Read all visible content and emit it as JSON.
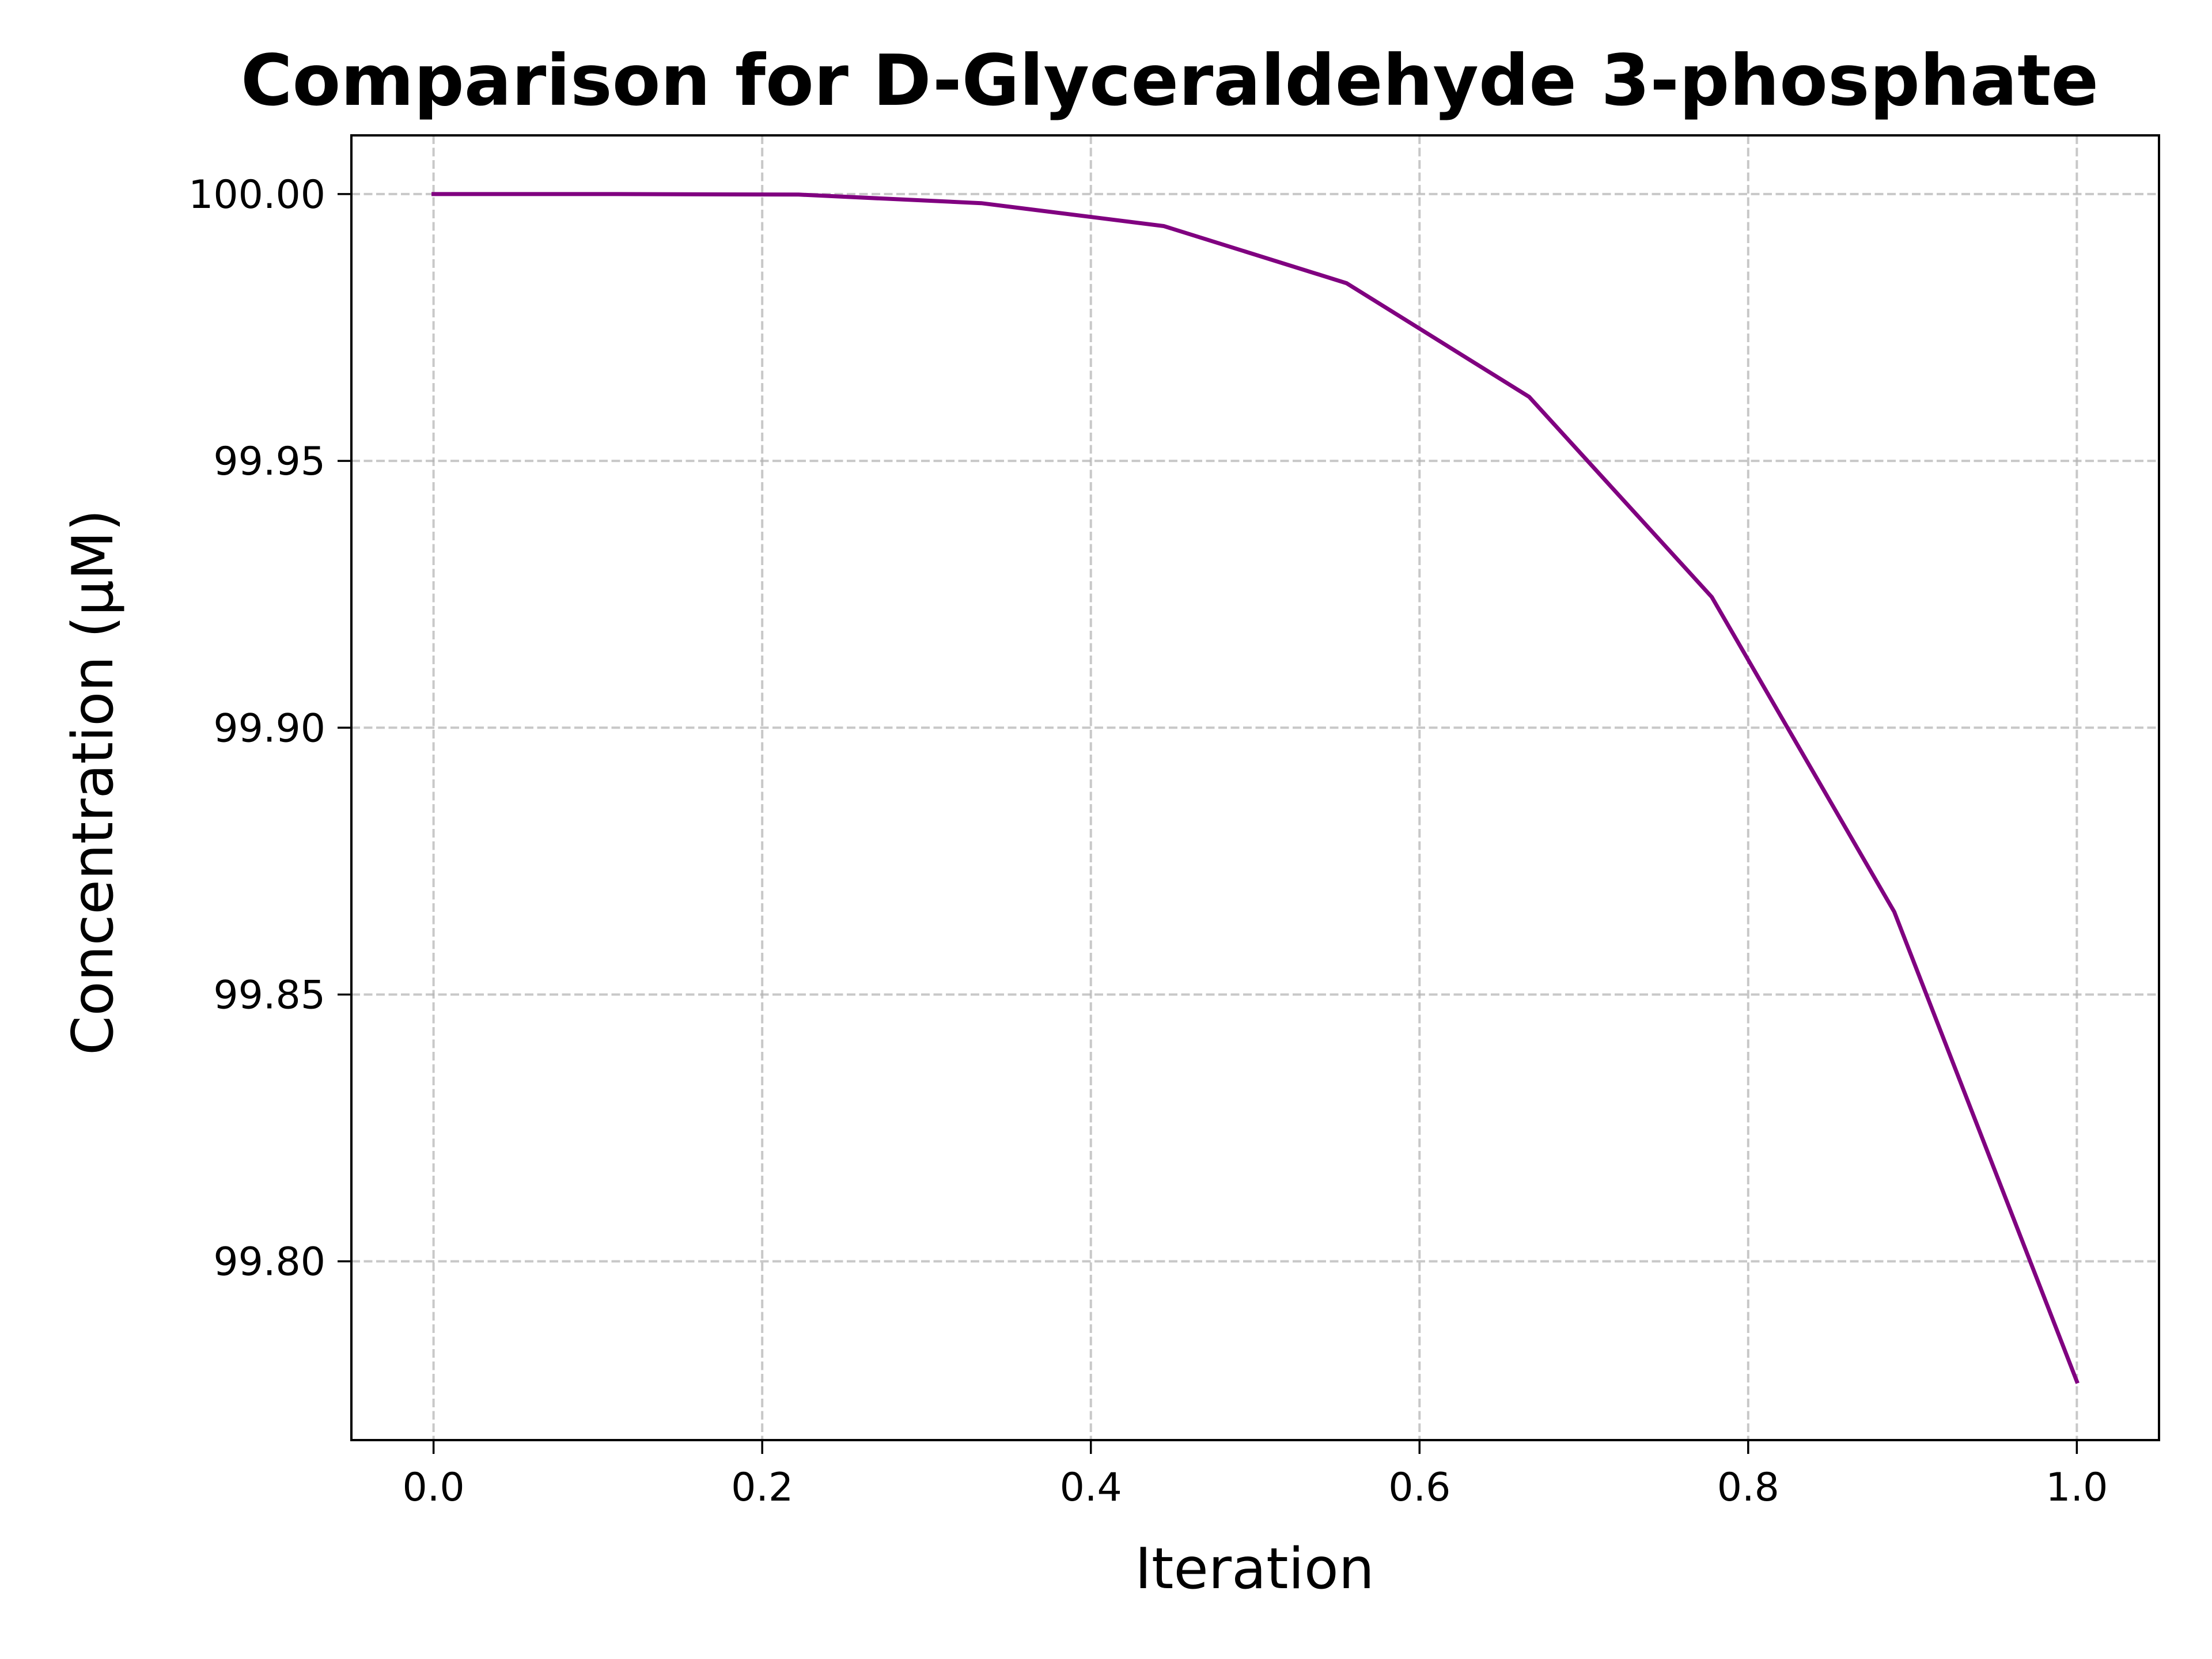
{
  "chart_data": {
    "type": "line",
    "title": "Comparison for D-Glyceraldehyde 3-phosphate",
    "xlabel": "Iteration",
    "ylabel": "Concentration (μM)",
    "xlim": [
      -0.05,
      1.05
    ],
    "ylim": [
      99.7665,
      100.011
    ],
    "x_ticks": [
      "0.0",
      "0.2",
      "0.4",
      "0.6",
      "0.8",
      "1.0"
    ],
    "x_tick_values": [
      0.0,
      0.2,
      0.4,
      0.6,
      0.8,
      1.0
    ],
    "y_ticks": [
      "99.80",
      "99.85",
      "99.90",
      "99.95",
      "100.00"
    ],
    "y_tick_values": [
      99.8,
      99.85,
      99.9,
      99.95,
      100.0
    ],
    "grid": true,
    "series": [
      {
        "color": "#800080",
        "x": [
          0.0,
          0.1111,
          0.2222,
          0.3333,
          0.4444,
          0.5556,
          0.6667,
          0.7778,
          0.8889,
          1.0
        ],
        "y": [
          100.0,
          100.0,
          99.9999,
          99.9983,
          99.994,
          99.9833,
          99.962,
          99.9245,
          99.8655,
          99.7775
        ]
      }
    ]
  }
}
